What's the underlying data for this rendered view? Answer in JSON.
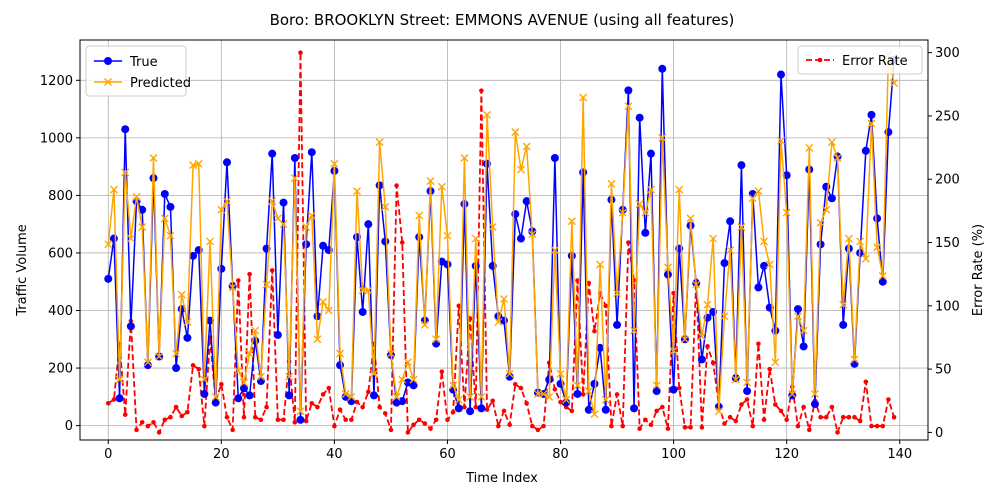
{
  "chart_data": {
    "type": "line",
    "title": "Boro: BROOKLYN Street: EMMONS AVENUE (using all features)",
    "xlabel": "Time Index",
    "ylabel": "Traffic Volume",
    "y2label": "Error Rate (%)",
    "xlim": [
      -5,
      145
    ],
    "ylim": [
      -50,
      1340
    ],
    "y2lim": [
      -6,
      310
    ],
    "xticks": [
      0,
      20,
      40,
      60,
      80,
      100,
      120,
      140
    ],
    "yticks": [
      0,
      200,
      400,
      600,
      800,
      1000,
      1200
    ],
    "y2ticks": [
      0,
      50,
      100,
      150,
      200,
      250,
      300
    ],
    "grid": true,
    "legend_left": "upper-left",
    "legend_right": "upper-right",
    "colors": {
      "true": "#0000ff",
      "predicted": "#ffa500",
      "error": "#ff0000"
    },
    "x": [
      0,
      1,
      2,
      3,
      4,
      5,
      6,
      7,
      8,
      9,
      10,
      11,
      12,
      13,
      14,
      15,
      16,
      17,
      18,
      19,
      20,
      21,
      22,
      23,
      24,
      25,
      26,
      27,
      28,
      29,
      30,
      31,
      32,
      33,
      34,
      35,
      36,
      37,
      38,
      39,
      40,
      41,
      42,
      43,
      44,
      45,
      46,
      47,
      48,
      49,
      50,
      51,
      52,
      53,
      54,
      55,
      56,
      57,
      58,
      59,
      60,
      61,
      62,
      63,
      64,
      65,
      66,
      67,
      68,
      69,
      70,
      71,
      72,
      73,
      74,
      75,
      76,
      77,
      78,
      79,
      80,
      81,
      82,
      83,
      84,
      85,
      86,
      87,
      88,
      89,
      90,
      91,
      92,
      93,
      94,
      95,
      96,
      97,
      98,
      99,
      100,
      101,
      102,
      103,
      104,
      105,
      106,
      107,
      108,
      109,
      110,
      111,
      112,
      113,
      114,
      115,
      116,
      117,
      118,
      119,
      120,
      121,
      122,
      123,
      124,
      125,
      126,
      127,
      128,
      129,
      130,
      131,
      132,
      133,
      134,
      135,
      136,
      137,
      138,
      139
    ],
    "series": [
      {
        "name": "True",
        "axis": "left",
        "values": [
          510,
          650,
          95,
          1030,
          345,
          780,
          750,
          210,
          860,
          240,
          805,
          760,
          200,
          405,
          305,
          590,
          610,
          110,
          365,
          80,
          545,
          915,
          485,
          95,
          130,
          105,
          295,
          155,
          615,
          945,
          315,
          775,
          105,
          930,
          20,
          630,
          950,
          380,
          625,
          610,
          885,
          210,
          100,
          85,
          655,
          395,
          700,
          105,
          835,
          640,
          245,
          80,
          85,
          150,
          140,
          655,
          365,
          815,
          285,
          570,
          560,
          125,
          60,
          770,
          50,
          555,
          60,
          910,
          555,
          380,
          365,
          170,
          735,
          650,
          780,
          675,
          115,
          110,
          160,
          930,
          145,
          80,
          590,
          110,
          880,
          55,
          145,
          270,
          55,
          785,
          350,
          750,
          1165,
          60,
          1070,
          670,
          945,
          120,
          1240,
          525,
          125,
          615,
          300,
          695,
          495,
          230,
          375,
          395,
          65,
          565,
          710,
          165,
          905,
          120,
          805,
          480,
          555,
          410,
          330,
          1220,
          870,
          105,
          405,
          275,
          890,
          75,
          630,
          830,
          790,
          935,
          350,
          615,
          215,
          600,
          955,
          1080,
          720,
          500,
          1020,
          1270
        ]
      },
      {
        "name": "Predicted",
        "axis": "left",
        "values": [
          630,
          820,
          160,
          880,
          650,
          795,
          690,
          220,
          930,
          240,
          720,
          660,
          250,
          455,
          360,
          905,
          910,
          160,
          640,
          100,
          750,
          780,
          480,
          190,
          150,
          250,
          330,
          170,
          490,
          780,
          720,
          700,
          170,
          860,
          50,
          690,
          730,
          300,
          430,
          400,
          910,
          250,
          110,
          100,
          815,
          470,
          470,
          180,
          985,
          760,
          250,
          100,
          160,
          220,
          160,
          730,
          350,
          850,
          300,
          830,
          660,
          140,
          90,
          930,
          100,
          650,
          100,
          1080,
          690,
          360,
          440,
          180,
          1020,
          890,
          970,
          665,
          110,
          110,
          100,
          610,
          180,
          90,
          710,
          140,
          1140,
          120,
          40,
          560,
          90,
          840,
          460,
          740,
          1110,
          330,
          770,
          740,
          820,
          140,
          1000,
          550,
          260,
          820,
          300,
          720,
          490,
          310,
          420,
          650,
          50,
          380,
          610,
          160,
          690,
          150,
          790,
          815,
          640,
          560,
          220,
          990,
          740,
          110,
          380,
          330,
          965,
          110,
          705,
          750,
          985,
          930,
          420,
          650,
          230,
          640,
          580,
          1050,
          620,
          520,
          1290,
          1190
        ]
      },
      {
        "name": "Error Rate",
        "axis": "right",
        "values": [
          23,
          26,
          70,
          14,
          88,
          2,
          8,
          5,
          8,
          0,
          10,
          12,
          20,
          13,
          16,
          53,
          50,
          5,
          75,
          25,
          38,
          12,
          2,
          120,
          12,
          125,
          12,
          10,
          20,
          128,
          10,
          10,
          56,
          8,
          300,
          9,
          23,
          20,
          30,
          35,
          5,
          18,
          10,
          10,
          24,
          20,
          32,
          70,
          20,
          15,
          2,
          195,
          150,
          0,
          6,
          10,
          7,
          3,
          10,
          48,
          10,
          16,
          100,
          20,
          90,
          20,
          270,
          18,
          25,
          5,
          17,
          6,
          38,
          35,
          23,
          5,
          2,
          5,
          55,
          34,
          24,
          20,
          17,
          120,
          30,
          118,
          80,
          110,
          100,
          5,
          30,
          5,
          150,
          120,
          3,
          10,
          6,
          17,
          20,
          3,
          110,
          35,
          4,
          4,
          120,
          4,
          68,
          55,
          22,
          7,
          12,
          9,
          22,
          26,
          5,
          70,
          10,
          50,
          22,
          17,
          10,
          36,
          5,
          20,
          2,
          25,
          12,
          12,
          20,
          0,
          12,
          12,
          12,
          9,
          40,
          5,
          5,
          5,
          26,
          12
        ]
      }
    ]
  }
}
